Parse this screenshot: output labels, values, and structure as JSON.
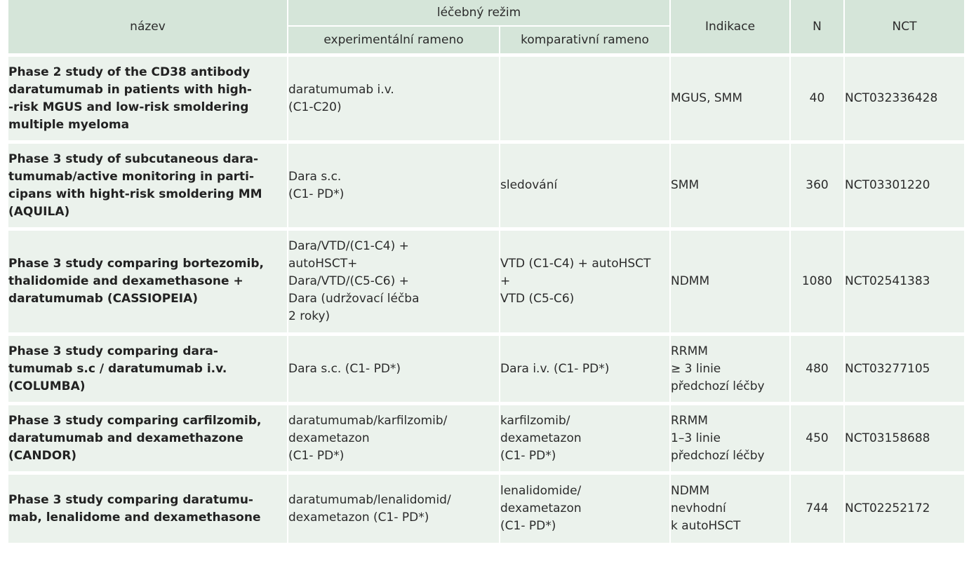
{
  "header": {
    "nazev": "název",
    "lecebny_rezim": "léčebný režim",
    "experimentalni": "experimentální rameno",
    "komparativni": "komparativní rameno",
    "indikace": "Indikace",
    "n": "N",
    "nct": "NCT"
  },
  "rows": [
    {
      "name": [
        "Phase 2 study of the CD38 antibody",
        "daratumumab in patients with high-",
        "-risk MGUS and low-risk smoldering",
        "multiple myeloma"
      ],
      "exp": [
        "daratumumab i.v.",
        "(C1-C20)"
      ],
      "cmp": [],
      "ind": [
        "MGUS, SMM"
      ],
      "n": "40",
      "nct": "NCT032336428"
    },
    {
      "name": [
        "Phase 3 study of subcutaneous dara-",
        "tumumab/active monitoring in parti-",
        "cipans with hight-risk smoldering MM",
        "(AQUILA)"
      ],
      "exp": [
        "Dara s.c.",
        "(C1- PD*)"
      ],
      "cmp": [
        "sledování"
      ],
      "ind": [
        "SMM"
      ],
      "n": "360",
      "nct": "NCT03301220"
    },
    {
      "name": [
        "Phase 3 study comparing bortezomib,",
        "thalidomide and dexamethasone +",
        "daratumumab (CASSIOPEIA)"
      ],
      "exp": [
        "Dara/VTD/(C1-C4) +",
        "autoHSCT+",
        "Dara/VTD/(C5-C6) +",
        "Dara (udržovací léčba",
        "2 roky)"
      ],
      "cmp": [
        "VTD (C1-C4) + autoHSCT",
        "+",
        "VTD (C5-C6)"
      ],
      "ind": [
        "NDMM"
      ],
      "n": "1080",
      "nct": "NCT02541383"
    },
    {
      "name": [
        "Phase 3 study comparing dara-",
        "tumumab s.c / daratumumab i.v.",
        "(COLUMBA)"
      ],
      "exp": [
        "Dara s.c. (C1- PD*)"
      ],
      "cmp": [
        "Dara i.v. (C1- PD*)"
      ],
      "ind": [
        "RRMM",
        "≥ 3 linie",
        "předchozí léčby"
      ],
      "n": "480",
      "nct": "NCT03277105"
    },
    {
      "name": [
        "Phase 3 study comparing carfilzomib,",
        "daratumumab and dexamethazone",
        "(CANDOR)"
      ],
      "exp": [
        "daratumumab/karfilzomib/",
        "dexametazon",
        "(C1- PD*)"
      ],
      "cmp": [
        "karfilzomib/",
        "dexametazon",
        "(C1- PD*)"
      ],
      "ind": [
        "RRMM",
        "1–3 linie",
        "předchozí léčby"
      ],
      "n": "450",
      "nct": "NCT03158688"
    },
    {
      "name": [
        "Phase 3 study comparing daratumu-",
        "mab, lenalidome and dexamethasone"
      ],
      "exp": [
        "daratumumab/lenalidomid/",
        "dexametazon (C1- PD*)"
      ],
      "cmp": [
        "lenalidomide/",
        "dexametazon",
        "(C1- PD*)"
      ],
      "ind": [
        "NDMM",
        "nevhodní",
        "k autoHSCT"
      ],
      "n": "744",
      "nct": "NCT02252172"
    }
  ]
}
